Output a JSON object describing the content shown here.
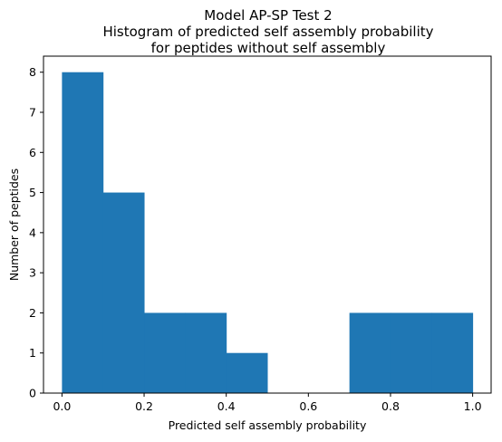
{
  "chart_data": {
    "type": "histogram",
    "title_lines": [
      "Model AP-SP Test 2",
      "Histogram of predicted self assembly probability",
      "for peptides without self assembly"
    ],
    "xlabel": "Predicted self assembly probability",
    "ylabel": "Number of peptides",
    "xlim": [
      -0.045,
      1.045
    ],
    "ylim": [
      0,
      8.4
    ],
    "xticks": [
      "0.0",
      "0.2",
      "0.4",
      "0.6",
      "0.8",
      "1.0"
    ],
    "yticks": [
      "0",
      "1",
      "2",
      "3",
      "4",
      "5",
      "6",
      "7",
      "8"
    ],
    "bin_edges": [
      0.0,
      0.1,
      0.2,
      0.3,
      0.4,
      0.5,
      0.6,
      0.7,
      0.8,
      0.9,
      1.0
    ],
    "counts": [
      8,
      5,
      2,
      2,
      1,
      0,
      0,
      2,
      2,
      2
    ],
    "bar_color": "#1f77b4",
    "grid": false
  }
}
